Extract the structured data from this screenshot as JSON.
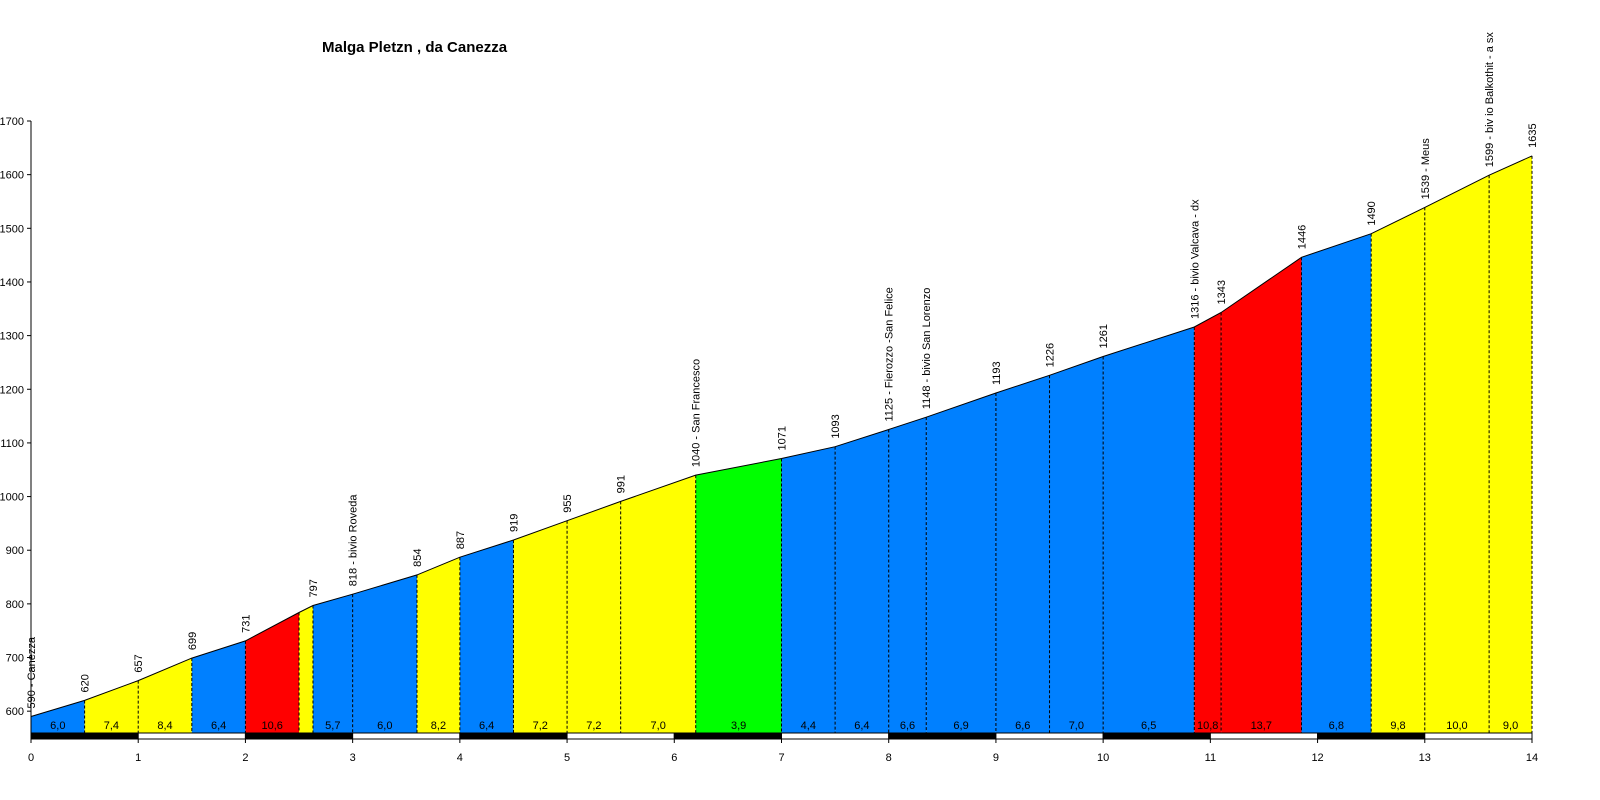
{
  "chart_data": {
    "type": "area",
    "title": "Malga Pletzn , da Canezza",
    "xlabel": "",
    "ylabel": "",
    "xlim": [
      0,
      14
    ],
    "ylim": [
      550,
      1700
    ],
    "x_ticks": [
      0,
      1,
      2,
      3,
      4,
      5,
      6,
      7,
      8,
      9,
      10,
      11,
      12,
      13,
      14
    ],
    "y_ticks": [
      600,
      700,
      800,
      900,
      1000,
      1100,
      1200,
      1300,
      1400,
      1500,
      1600,
      1700
    ],
    "grid": false,
    "colors": {
      "yellow": "#ffff00",
      "blue": "#0080ff",
      "red": "#ff0000",
      "green": "#00ff00"
    },
    "points": [
      {
        "x": 0.0,
        "y": 590,
        "label": "590 - Canezza"
      },
      {
        "x": 0.5,
        "y": 620,
        "label": "620"
      },
      {
        "x": 1.0,
        "y": 657,
        "label": "657"
      },
      {
        "x": 1.5,
        "y": 699,
        "label": "699"
      },
      {
        "x": 2.0,
        "y": 731,
        "label": "731"
      },
      {
        "x": 2.5,
        "y": 784,
        "label": ""
      },
      {
        "x": 2.63,
        "y": 797,
        "label": "797"
      },
      {
        "x": 3.0,
        "y": 818,
        "label": "818 - bivio Roveda"
      },
      {
        "x": 3.6,
        "y": 854,
        "label": "854"
      },
      {
        "x": 4.0,
        "y": 887,
        "label": "887"
      },
      {
        "x": 4.5,
        "y": 919,
        "label": "919"
      },
      {
        "x": 5.0,
        "y": 955,
        "label": "955"
      },
      {
        "x": 5.5,
        "y": 991,
        "label": "991"
      },
      {
        "x": 6.2,
        "y": 1040,
        "label": "1040 - San Francesco"
      },
      {
        "x": 7.0,
        "y": 1071,
        "label": "1071"
      },
      {
        "x": 7.5,
        "y": 1093,
        "label": "1093"
      },
      {
        "x": 8.0,
        "y": 1125,
        "label": "1125 - Fierozzo -San Felice"
      },
      {
        "x": 8.35,
        "y": 1148,
        "label": "1148 - bivio San Lorenzo"
      },
      {
        "x": 9.0,
        "y": 1193,
        "label": "1193"
      },
      {
        "x": 9.5,
        "y": 1226,
        "label": "1226"
      },
      {
        "x": 10.0,
        "y": 1261,
        "label": "1261"
      },
      {
        "x": 10.85,
        "y": 1316,
        "label": "1316 - bivio Valcava - dx"
      },
      {
        "x": 11.1,
        "y": 1343,
        "label": "1343"
      },
      {
        "x": 11.85,
        "y": 1446,
        "label": "1446"
      },
      {
        "x": 12.5,
        "y": 1490,
        "label": "1490"
      },
      {
        "x": 13.0,
        "y": 1539,
        "label": "1539 - Meus"
      },
      {
        "x": 13.6,
        "y": 1599,
        "label": "1599 - biv io Balkothit - a sx"
      },
      {
        "x": 14.0,
        "y": 1635,
        "label": "1635"
      }
    ],
    "segments": [
      {
        "x0": 0.0,
        "x1": 0.5,
        "gradient": "6,0",
        "color": "blue"
      },
      {
        "x0": 0.5,
        "x1": 1.0,
        "gradient": "7,4",
        "color": "yellow"
      },
      {
        "x0": 1.0,
        "x1": 1.5,
        "gradient": "8,4",
        "color": "yellow"
      },
      {
        "x0": 1.5,
        "x1": 2.0,
        "gradient": "6,4",
        "color": "blue"
      },
      {
        "x0": 2.0,
        "x1": 2.5,
        "gradient": "10,6",
        "color": "red"
      },
      {
        "x0": 2.5,
        "x1": 2.63,
        "gradient": "",
        "color": "yellow"
      },
      {
        "x0": 2.63,
        "x1": 3.0,
        "gradient": "5,7",
        "color": "blue"
      },
      {
        "x0": 3.0,
        "x1": 3.6,
        "gradient": "6,0",
        "color": "blue"
      },
      {
        "x0": 3.6,
        "x1": 4.0,
        "gradient": "8,2",
        "color": "yellow"
      },
      {
        "x0": 4.0,
        "x1": 4.5,
        "gradient": "6,4",
        "color": "blue"
      },
      {
        "x0": 4.5,
        "x1": 5.0,
        "gradient": "7,2",
        "color": "yellow"
      },
      {
        "x0": 5.0,
        "x1": 5.5,
        "gradient": "7,2",
        "color": "yellow"
      },
      {
        "x0": 5.5,
        "x1": 6.2,
        "gradient": "7,0",
        "color": "yellow"
      },
      {
        "x0": 6.2,
        "x1": 7.0,
        "gradient": "3,9",
        "color": "green"
      },
      {
        "x0": 7.0,
        "x1": 7.5,
        "gradient": "4,4",
        "color": "blue"
      },
      {
        "x0": 7.5,
        "x1": 8.0,
        "gradient": "6,4",
        "color": "blue"
      },
      {
        "x0": 8.0,
        "x1": 8.35,
        "gradient": "6,6",
        "color": "blue"
      },
      {
        "x0": 8.35,
        "x1": 9.0,
        "gradient": "6,9",
        "color": "blue"
      },
      {
        "x0": 9.0,
        "x1": 9.5,
        "gradient": "6,6",
        "color": "blue"
      },
      {
        "x0": 9.5,
        "x1": 10.0,
        "gradient": "7,0",
        "color": "blue"
      },
      {
        "x0": 10.0,
        "x1": 10.85,
        "gradient": "6,5",
        "color": "blue"
      },
      {
        "x0": 10.85,
        "x1": 11.1,
        "gradient": "10,8",
        "color": "red"
      },
      {
        "x0": 11.1,
        "x1": 11.85,
        "gradient": "13,7",
        "color": "red"
      },
      {
        "x0": 11.85,
        "x1": 12.5,
        "gradient": "6,8",
        "color": "blue"
      },
      {
        "x0": 12.5,
        "x1": 13.0,
        "gradient": "9,8",
        "color": "yellow"
      },
      {
        "x0": 13.0,
        "x1": 13.6,
        "gradient": "10,0",
        "color": "yellow"
      },
      {
        "x0": 13.6,
        "x1": 14.0,
        "gradient": "9,0",
        "color": "yellow"
      }
    ]
  }
}
